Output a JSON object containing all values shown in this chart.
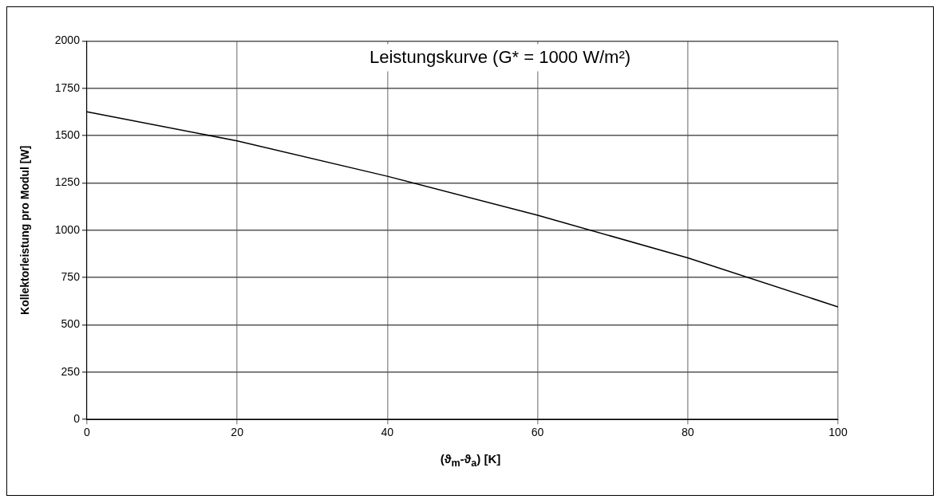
{
  "chart_data": {
    "type": "line",
    "title": "Leistungskurve (G* = 1000 W/m²)",
    "xlabel": "(ϑ$_{m}$-ϑ$_{a}$) [K]",
    "ylabel": "Kollektorleistung pro Modul [W]",
    "x": [
      0,
      20,
      40,
      60,
      80,
      100
    ],
    "series": [
      {
        "color": "#000000",
        "values": [
          1626,
          1472,
          1285,
          1079,
          854,
          595
        ]
      }
    ],
    "xlim": [
      0,
      100
    ],
    "xticks": [
      0,
      20,
      40,
      60,
      80,
      100
    ],
    "ylim": [
      0,
      2000
    ],
    "yticks": [
      0,
      250,
      500,
      750,
      1000,
      1250,
      1500,
      1750,
      2000
    ],
    "grid": true,
    "legend": false,
    "marker": "none",
    "line_style": "solid"
  }
}
